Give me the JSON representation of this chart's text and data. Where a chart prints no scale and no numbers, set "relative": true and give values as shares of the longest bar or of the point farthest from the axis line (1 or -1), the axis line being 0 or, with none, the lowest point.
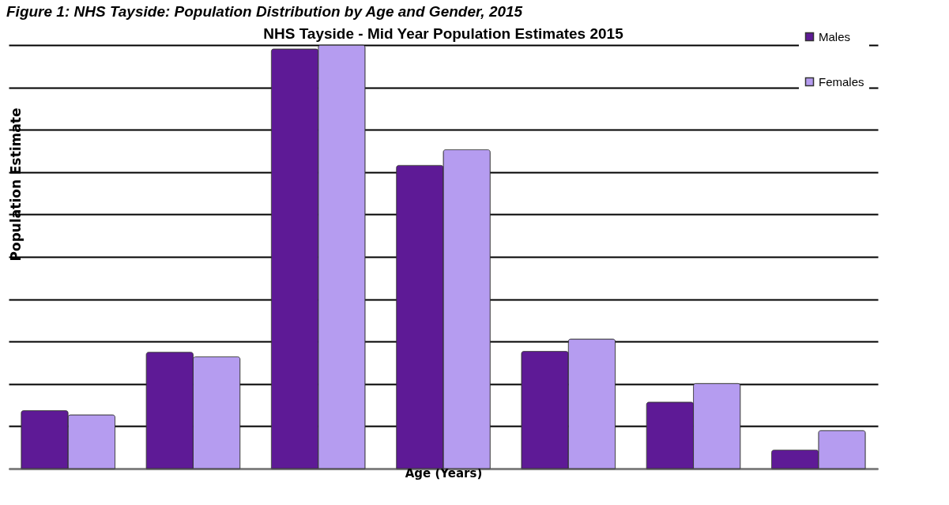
{
  "chart_data": {
    "type": "bar",
    "title": "NHS Tayside - Mid Year Population Estimates 2015",
    "annotations": [
      "Figure 1: NHS Tayside: Population Distribution by Age and Gender, 2015"
    ],
    "xlabel": "Age (Years)",
    "ylabel": "Population Estimate",
    "relative": true,
    "categories": [
      null,
      null,
      null,
      null,
      null,
      null,
      null
    ],
    "series": [
      {
        "name": "Males",
        "color": "#5e1a96",
        "values": [
          0.137,
          0.275,
          0.991,
          0.716,
          0.277,
          0.157,
          0.044
        ]
      },
      {
        "name": "Females",
        "color": "#b59cf0",
        "values": [
          0.127,
          0.264,
          1,
          0.753,
          0.306,
          0.201,
          0.09
        ]
      }
    ],
    "grid": true,
    "legend": "right"
  }
}
